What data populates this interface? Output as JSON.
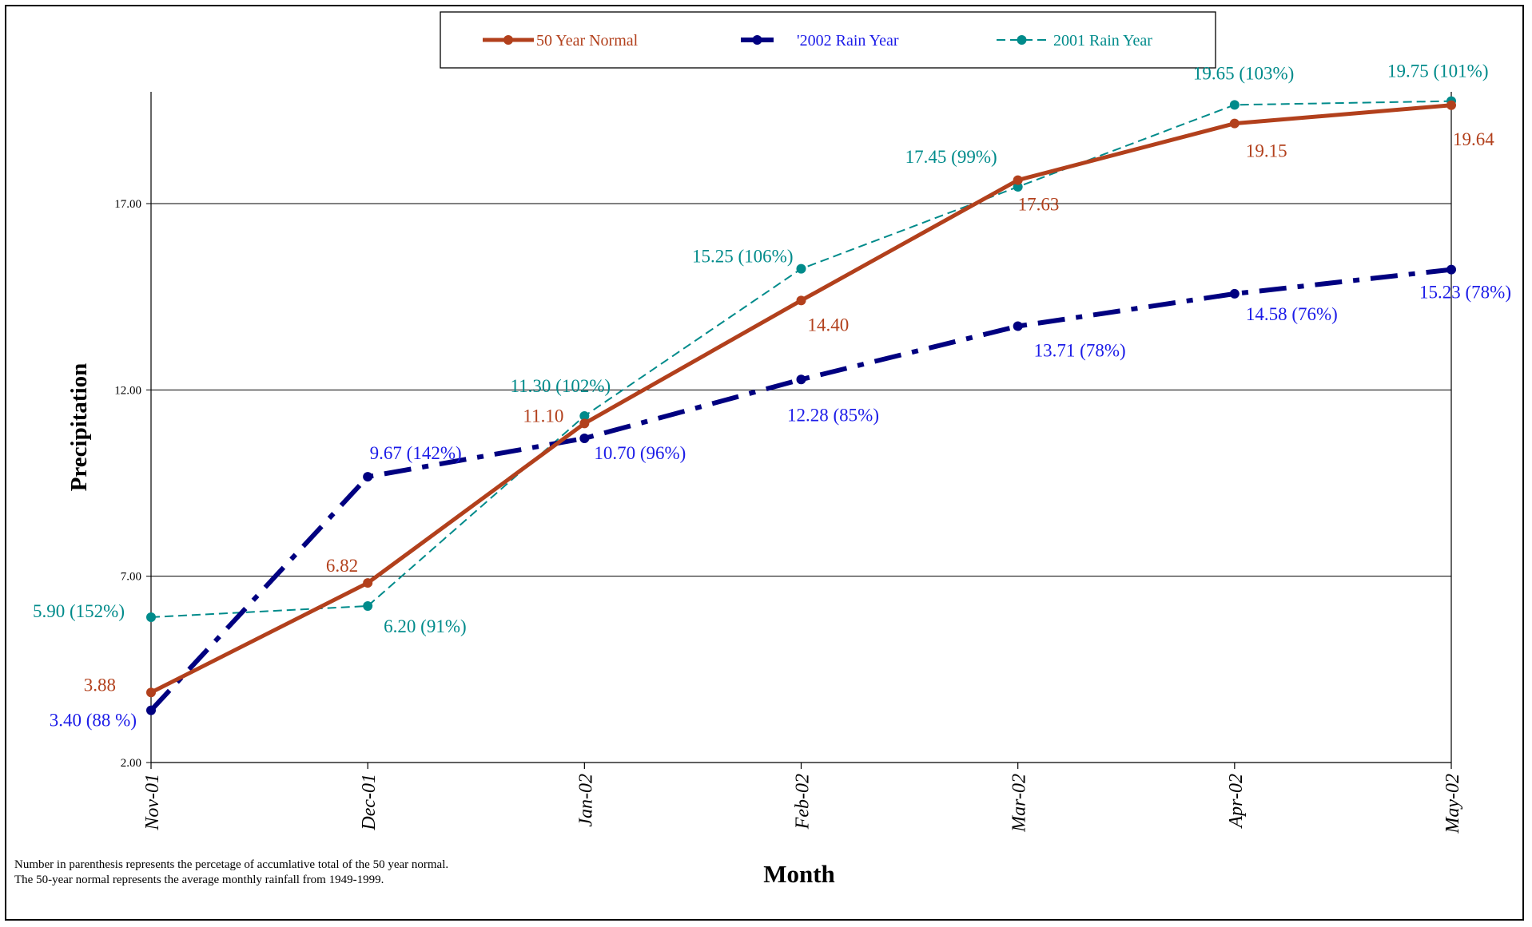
{
  "chart_data": {
    "type": "line",
    "categories": [
      "Nov-01",
      "Dec-01",
      "Jan-02",
      "Feb-02",
      "Mar-02",
      "Apr-02",
      "May-02"
    ],
    "series": [
      {
        "name": "50 Year Normal",
        "color": "#B2401C",
        "style": "solid",
        "values": [
          3.88,
          6.82,
          11.1,
          14.4,
          17.63,
          19.15,
          19.64
        ],
        "labels": [
          "3.88",
          "6.82",
          "11.10",
          "14.40",
          "17.63",
          "19.15",
          "19.64"
        ]
      },
      {
        "name": "'2002 Rain Year",
        "color": "#000080",
        "style": "dash-dot",
        "values": [
          3.4,
          9.67,
          10.7,
          12.28,
          13.71,
          14.58,
          15.23
        ],
        "labels": [
          "3.40 (88 %)",
          "9.67 (142%)",
          "10.70 (96%)",
          "12.28 (85%)",
          "13.71 (78%)",
          "14.58 (76%)",
          "15.23 (78%)"
        ]
      },
      {
        "name": "2001 Rain Year",
        "color": "#008B8B",
        "style": "dashed",
        "values": [
          5.9,
          6.2,
          11.3,
          15.25,
          17.45,
          19.65,
          19.75
        ],
        "labels": [
          "5.90 (152%)",
          "6.20 (91%)",
          "11.30 (102%)",
          "15.25 (106%)",
          "17.45 (99%)",
          "19.65 (103%)",
          "19.75 (101%)"
        ]
      }
    ],
    "xlabel": "Month",
    "ylabel": "Precipitation",
    "ylim": [
      2,
      20
    ],
    "yticks": [
      "2.00",
      "7.00",
      "12.00",
      "17.00"
    ],
    "grid": true,
    "legend_position": "top"
  },
  "footnotes": {
    "line1": "Number in parenthesis represents the percetage of accumlative total of the 50 year normal.",
    "line2": "The 50-year normal represents the average monthly rainfall from 1949-1999."
  }
}
